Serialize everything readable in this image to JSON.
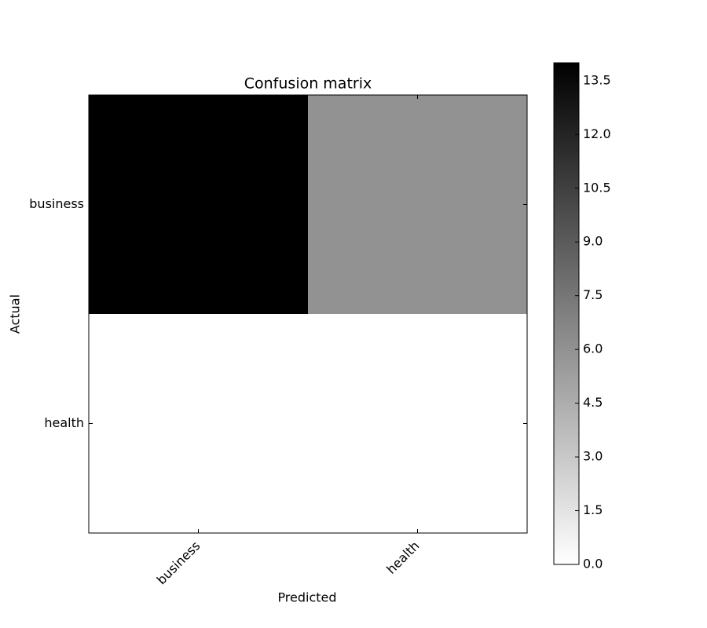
{
  "chart_data": {
    "type": "heatmap",
    "title": "Confusion matrix",
    "x_label": "Predicted",
    "y_label": "Actual",
    "categories": [
      "business",
      "health"
    ],
    "y_categories": [
      "business",
      "health"
    ],
    "values": [
      [
        14,
        6
      ],
      [
        0,
        0
      ]
    ],
    "colormap": "gray_r",
    "zlim": [
      0,
      14
    ],
    "zticks": [
      {
        "value": 0,
        "label": "0.0"
      },
      1.5,
      {
        "value": 3,
        "label": "3.0"
      },
      4.5,
      {
        "value": 6,
        "label": "6.0"
      },
      7.5,
      {
        "value": 9,
        "label": "9.0"
      },
      10.5,
      {
        "value": 12,
        "label": "12.0"
      },
      13.5
    ]
  }
}
